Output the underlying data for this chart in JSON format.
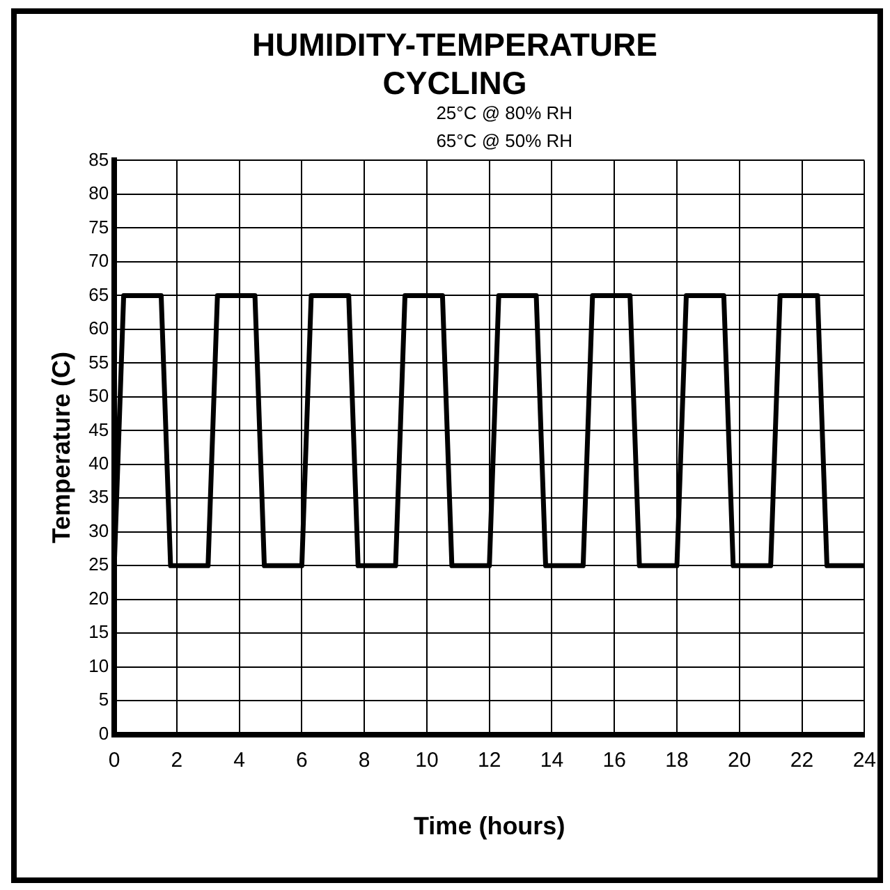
{
  "chart_data": {
    "type": "line",
    "title": "HUMIDITY-TEMPERATURE CYCLING",
    "xlabel": "Time (hours)",
    "ylabel": "Temperature (C)",
    "annotations": [
      "25°C @ 80% RH",
      "65°C @ 50% RH"
    ],
    "x": [
      0,
      0.3,
      1.5,
      1.8,
      3.0,
      3.3,
      4.5,
      4.8,
      6.0,
      6.3,
      7.5,
      7.8,
      9.0,
      9.3,
      10.5,
      10.8,
      12.0,
      12.3,
      13.5,
      13.8,
      15.0,
      15.3,
      16.5,
      16.8,
      18.0,
      18.3,
      19.5,
      19.8,
      21.0,
      21.3,
      22.5,
      22.8,
      24
    ],
    "series": [
      {
        "color": "#000000",
        "values": [
          25,
          65,
          65,
          25,
          25,
          65,
          65,
          25,
          25,
          65,
          65,
          25,
          25,
          65,
          65,
          25,
          25,
          65,
          65,
          25,
          25,
          65,
          65,
          25,
          25,
          65,
          65,
          25,
          25,
          65,
          65,
          25,
          25
        ]
      }
    ],
    "xlim": [
      0,
      24
    ],
    "xticks": [
      0,
      2,
      4,
      6,
      8,
      10,
      12,
      14,
      16,
      18,
      20,
      22,
      24
    ],
    "ylim": [
      0,
      85
    ],
    "yticks": [
      0,
      5,
      10,
      15,
      20,
      25,
      30,
      35,
      40,
      45,
      50,
      55,
      60,
      65,
      70,
      75,
      80,
      85
    ],
    "grid": true,
    "legend": false,
    "marker": "none",
    "line_style": "solid"
  }
}
